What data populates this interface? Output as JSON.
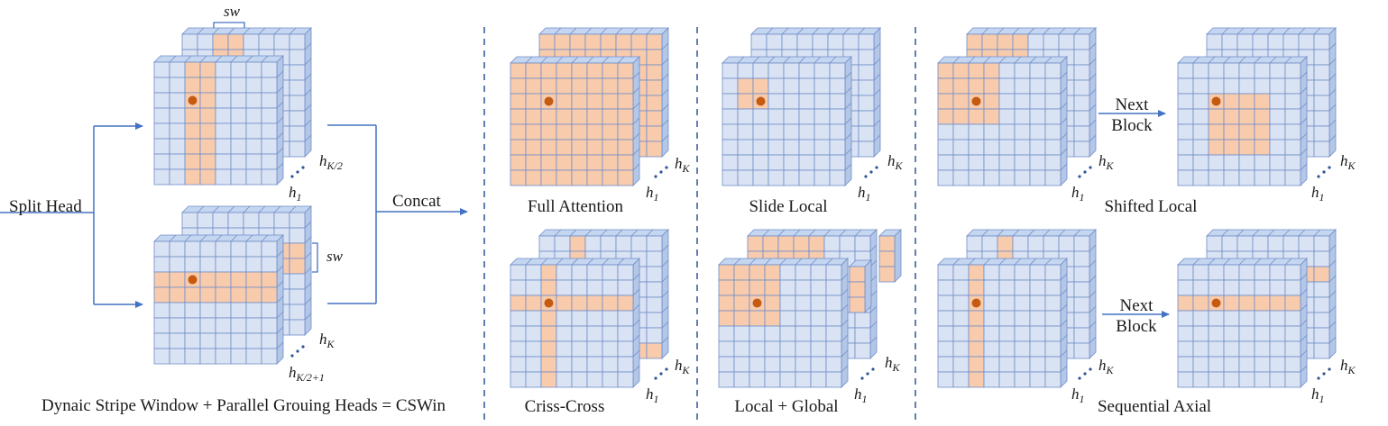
{
  "colors": {
    "cell": "#dae3f3",
    "highlight": "#f8cbad",
    "grid": "#6f8dc8",
    "side": "#b4c7e7",
    "top": "#c5d6f0",
    "dot": "#c55a11",
    "arrow": "#4472c4",
    "divider": "#2f5597"
  },
  "labels": {
    "sw_top": "sw",
    "sw_mid": "sw",
    "split_head": "Split Head",
    "concat": "Concat",
    "caption_cswin": "Dynaic Stripe Window + Parallel Grouing Heads = CSWin",
    "full_attention": "Full Attention",
    "slide_local": "Slide Local",
    "criss_cross": "Criss-Cross",
    "local_global": "Local + Global",
    "shifted_local": "Shifted Local",
    "sequential_axial": "Sequential Axial",
    "next_block_1": "Next\nBlock",
    "next_block_2": "Next\nBlock"
  },
  "heads": {
    "h_base": "h",
    "sub_1": "1",
    "sub_K": "K",
    "sub_K2": "K/2",
    "sub_K21": "K/2+1"
  }
}
